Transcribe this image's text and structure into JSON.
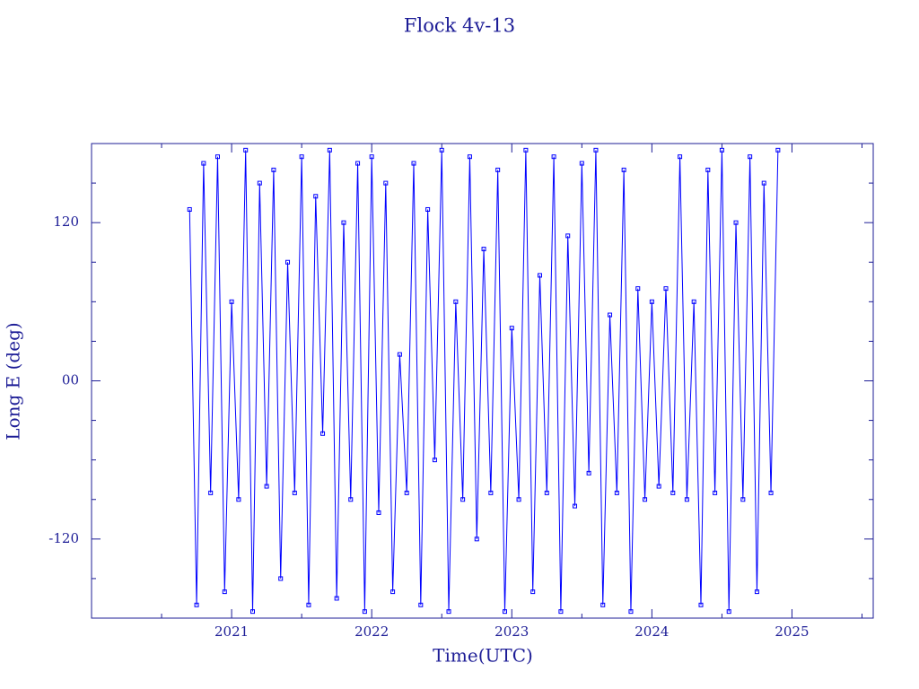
{
  "chart_data": {
    "type": "line",
    "title": "Flock 4v-13",
    "xlabel": "Time(UTC)",
    "ylabel": "Long E (deg)",
    "color": "#0000ff",
    "axis_color": "#1c1c96",
    "xlim": [
      2020.0,
      2025.58
    ],
    "ylim": [
      -180,
      180
    ],
    "xticks": [
      2021,
      2022,
      2023,
      2024,
      2025
    ],
    "xminorticks": [
      2020.5,
      2021.5,
      2022.5,
      2023.5,
      2024.5,
      2025.5
    ],
    "yticks": [
      -120,
      {
        "value": 0,
        "label": "00"
      },
      120
    ],
    "yminorticks": [
      -150,
      -90,
      -60,
      -30,
      30,
      60,
      90,
      150
    ],
    "x": [
      2020.7,
      2020.75,
      2020.8,
      2020.85,
      2020.9,
      2020.95,
      2021.0,
      2021.05,
      2021.1,
      2021.15,
      2021.2,
      2021.25,
      2021.3,
      2021.35,
      2021.4,
      2021.45,
      2021.5,
      2021.55,
      2021.6,
      2021.65,
      2021.7,
      2021.75,
      2021.8,
      2021.85,
      2021.9,
      2021.95,
      2022.0,
      2022.05,
      2022.1,
      2022.15,
      2022.2,
      2022.25,
      2022.3,
      2022.35,
      2022.4,
      2022.45,
      2022.5,
      2022.55,
      2022.6,
      2022.65,
      2022.7,
      2022.75,
      2022.8,
      2022.85,
      2022.9,
      2022.95,
      2023.0,
      2023.05,
      2023.1,
      2023.15,
      2023.2,
      2023.25,
      2023.3,
      2023.35,
      2023.4,
      2023.45,
      2023.5,
      2023.55,
      2023.6,
      2023.65,
      2023.7,
      2023.75,
      2023.8,
      2023.85,
      2023.9,
      2023.95,
      2024.0,
      2024.05,
      2024.1,
      2024.15,
      2024.2,
      2024.25,
      2024.3,
      2024.35,
      2024.4,
      2024.45,
      2024.5,
      2024.55,
      2024.6,
      2024.65,
      2024.7,
      2024.75,
      2024.8,
      2024.85,
      2024.9
    ],
    "values": [
      130,
      -170,
      165,
      -85,
      170,
      -160,
      60,
      -90,
      175,
      -175,
      150,
      -80,
      160,
      -150,
      90,
      -85,
      170,
      -170,
      140,
      -40,
      175,
      -165,
      120,
      -90,
      165,
      -175,
      170,
      -100,
      150,
      -160,
      20,
      -85,
      165,
      -170,
      130,
      -60,
      175,
      -175,
      60,
      -90,
      170,
      -120,
      100,
      -85,
      160,
      -175,
      40,
      -90,
      175,
      -160,
      80,
      -85,
      170,
      -175,
      110,
      -95,
      165,
      -70,
      175,
      -170,
      50,
      -85,
      160,
      -175,
      70,
      -90,
      60,
      -80,
      70,
      -85,
      170,
      -90,
      60,
      -170,
      160,
      -85,
      175,
      -175,
      120,
      -90,
      170,
      -160,
      150,
      -85,
      175
    ]
  }
}
